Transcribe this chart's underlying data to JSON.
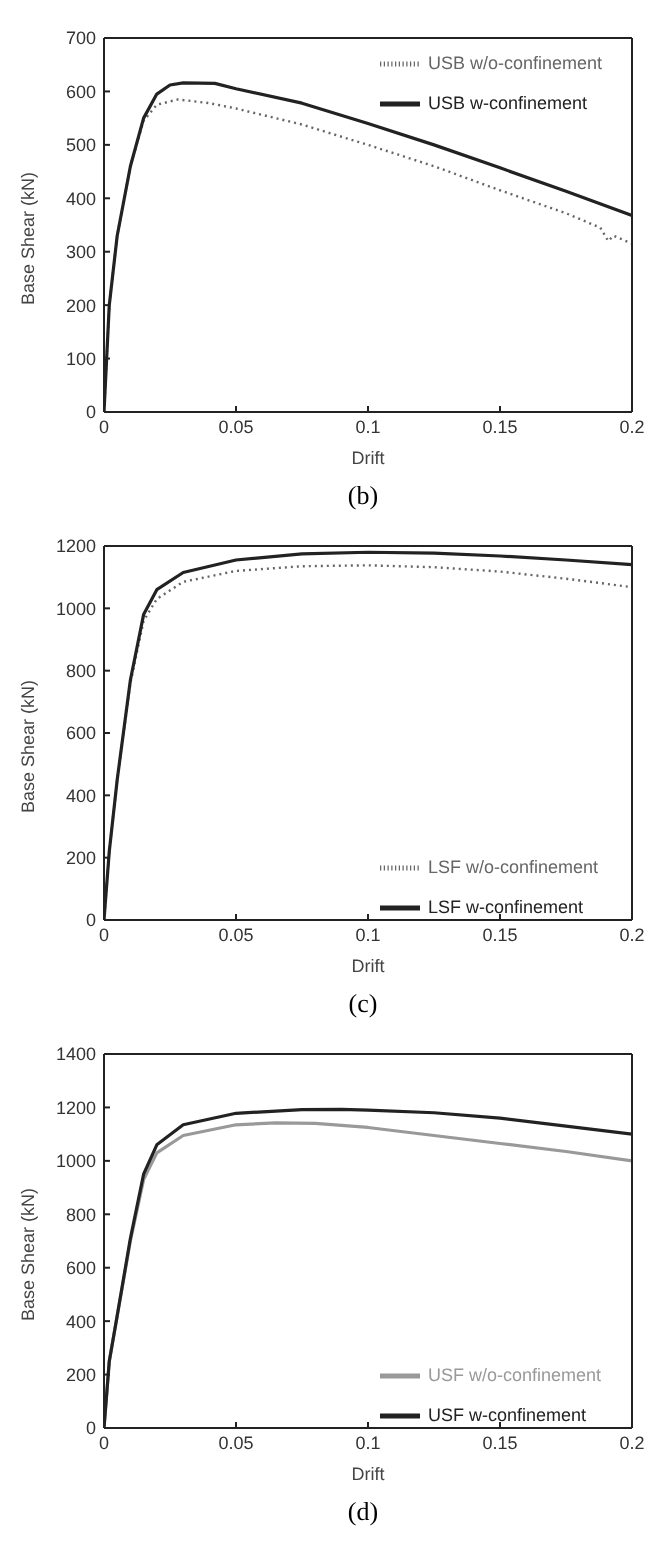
{
  "chart_data": [
    {
      "type": "line",
      "xlabel": "Drift",
      "ylabel": "Base Shear (kN)",
      "annotations": [
        "(b)"
      ],
      "xlim": [
        0,
        0.2
      ],
      "xticks": [
        0,
        0.05,
        0.1,
        0.15,
        0.2
      ],
      "ylim": [
        0,
        700
      ],
      "yticks": [
        0,
        100,
        200,
        300,
        400,
        500,
        600,
        700
      ],
      "grid": false,
      "legend": "top right",
      "marker": "none",
      "series": [
        {
          "name": "USB w/o-confinement",
          "color": "#666666",
          "line_style": "dotted",
          "x": [
            0,
            0.002,
            0.005,
            0.01,
            0.015,
            0.02,
            0.028,
            0.04,
            0.05,
            0.075,
            0.1,
            0.125,
            0.15,
            0.175,
            0.188,
            0.191,
            0.193,
            0.2
          ],
          "values": [
            0,
            200,
            330,
            460,
            545,
            575,
            585,
            578,
            568,
            538,
            500,
            460,
            415,
            372,
            345,
            320,
            330,
            315
          ]
        },
        {
          "name": "USB w-confinement",
          "color": "#222222",
          "line_style": "solid",
          "x": [
            0,
            0.002,
            0.005,
            0.01,
            0.015,
            0.02,
            0.025,
            0.03,
            0.042,
            0.05,
            0.075,
            0.1,
            0.125,
            0.15,
            0.175,
            0.2
          ],
          "values": [
            0,
            200,
            330,
            460,
            550,
            595,
            612,
            616,
            615,
            605,
            578,
            540,
            500,
            457,
            413,
            368
          ]
        }
      ]
    },
    {
      "type": "line",
      "xlabel": "Drift",
      "ylabel": "Base Shear (kN)",
      "annotations": [
        "(c)"
      ],
      "xlim": [
        0,
        0.2
      ],
      "xticks": [
        0,
        0.05,
        0.1,
        0.15,
        0.2
      ],
      "ylim": [
        0,
        1200
      ],
      "yticks": [
        0,
        200,
        400,
        600,
        800,
        1000,
        1200
      ],
      "grid": false,
      "legend": "bottom right",
      "marker": "none",
      "series": [
        {
          "name": "LSF w/o-confinement",
          "color": "#666666",
          "line_style": "dotted",
          "x": [
            0,
            0.002,
            0.005,
            0.01,
            0.015,
            0.02,
            0.03,
            0.05,
            0.075,
            0.1,
            0.125,
            0.15,
            0.175,
            0.2
          ],
          "values": [
            0,
            220,
            450,
            760,
            960,
            1030,
            1085,
            1120,
            1135,
            1138,
            1132,
            1118,
            1095,
            1068
          ]
        },
        {
          "name": "LSF w-confinement",
          "color": "#222222",
          "line_style": "solid",
          "x": [
            0,
            0.002,
            0.005,
            0.01,
            0.015,
            0.02,
            0.03,
            0.05,
            0.075,
            0.1,
            0.125,
            0.15,
            0.175,
            0.2
          ],
          "values": [
            0,
            220,
            450,
            770,
            980,
            1060,
            1115,
            1155,
            1175,
            1180,
            1177,
            1168,
            1155,
            1140
          ]
        }
      ]
    },
    {
      "type": "line",
      "xlabel": "Drift",
      "ylabel": "Base Shear (kN)",
      "annotations": [
        "(d)"
      ],
      "xlim": [
        0,
        0.2
      ],
      "xticks": [
        0,
        0.05,
        0.1,
        0.15,
        0.2
      ],
      "ylim": [
        0,
        1400
      ],
      "yticks": [
        0,
        200,
        400,
        600,
        800,
        1000,
        1200,
        1400
      ],
      "grid": false,
      "legend": "bottom right",
      "marker": "none",
      "series": [
        {
          "name": "USF w/o-confinement",
          "color": "#999999",
          "line_style": "solid",
          "x": [
            0,
            0.002,
            0.005,
            0.01,
            0.015,
            0.02,
            0.03,
            0.05,
            0.065,
            0.08,
            0.1,
            0.125,
            0.15,
            0.175,
            0.2
          ],
          "values": [
            0,
            250,
            420,
            700,
            930,
            1030,
            1095,
            1135,
            1142,
            1140,
            1125,
            1095,
            1065,
            1035,
            1000
          ]
        },
        {
          "name": "USF w-confinement",
          "color": "#222222",
          "line_style": "solid",
          "x": [
            0,
            0.002,
            0.005,
            0.01,
            0.015,
            0.02,
            0.03,
            0.05,
            0.075,
            0.09,
            0.1,
            0.125,
            0.15,
            0.175,
            0.2
          ],
          "values": [
            0,
            250,
            420,
            710,
            950,
            1060,
            1135,
            1178,
            1192,
            1193,
            1190,
            1180,
            1160,
            1130,
            1100
          ]
        }
      ]
    }
  ]
}
